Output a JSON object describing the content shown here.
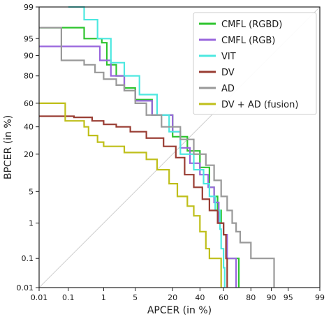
{
  "chart_data": {
    "type": "line",
    "xlabel": "APCER (in %)",
    "ylabel": "BPCER (in %)",
    "scale": "normal-deviate (probit) on both axes",
    "xlim": [
      0.01,
      99
    ],
    "ylim": [
      0.01,
      99
    ],
    "x_ticks": [
      0.01,
      0.1,
      1,
      5,
      20,
      40,
      60,
      80,
      90,
      95,
      99
    ],
    "x_tick_labels": [
      "0.01",
      "0.1",
      "1",
      "5",
      "20",
      "40",
      "60",
      "80",
      "90",
      "95",
      "99"
    ],
    "y_ticks": [
      0.01,
      0.1,
      1,
      5,
      20,
      40,
      60,
      80,
      90,
      95,
      99
    ],
    "y_tick_labels": [
      "0.01",
      "0.1",
      "1",
      "5",
      "20",
      "40",
      "60",
      "80",
      "90",
      "95",
      "99"
    ],
    "grid": false,
    "diagonal_reference": true,
    "legend_position": "top-right",
    "series": [
      {
        "name": "CMFL (RGBD)",
        "color": "#2ec42e",
        "points": [
          [
            0.01,
            97
          ],
          [
            0.07,
            97
          ],
          [
            0.3,
            95
          ],
          [
            0.9,
            94
          ],
          [
            1.2,
            86
          ],
          [
            2,
            80
          ],
          [
            3,
            72
          ],
          [
            5,
            63
          ],
          [
            10,
            50
          ],
          [
            20,
            32
          ],
          [
            30,
            22
          ],
          [
            40,
            13
          ],
          [
            48,
            6
          ],
          [
            52,
            4
          ],
          [
            55,
            2
          ],
          [
            58,
            1
          ],
          [
            60,
            0.5
          ],
          [
            61,
            0.5
          ],
          [
            62,
            0.1
          ],
          [
            70,
            0.1
          ],
          [
            72,
            0.01
          ]
        ]
      },
      {
        "name": "CMFL (RGB)",
        "color": "#9966dd",
        "points": [
          [
            0.01,
            93
          ],
          [
            0.5,
            93
          ],
          [
            0.8,
            88
          ],
          [
            1.5,
            80
          ],
          [
            3,
            70
          ],
          [
            5,
            62
          ],
          [
            10,
            50
          ],
          [
            20,
            36
          ],
          [
            25,
            24
          ],
          [
            32,
            15
          ],
          [
            40,
            10
          ],
          [
            47,
            6
          ],
          [
            52,
            3
          ],
          [
            56,
            1
          ],
          [
            60,
            0.5
          ],
          [
            63,
            0.1
          ],
          [
            66,
            0.1
          ],
          [
            70,
            0.01
          ]
        ]
      },
      {
        "name": "VIT",
        "color": "#4de8e0",
        "points": [
          [
            0.1,
            99
          ],
          [
            0.3,
            98
          ],
          [
            0.7,
            95
          ],
          [
            1.5,
            87
          ],
          [
            3,
            80
          ],
          [
            6,
            67
          ],
          [
            12,
            50
          ],
          [
            18,
            36
          ],
          [
            25,
            20
          ],
          [
            35,
            12
          ],
          [
            43,
            7
          ],
          [
            48,
            4
          ],
          [
            53,
            2
          ],
          [
            57,
            0.7
          ],
          [
            58,
            0.2
          ],
          [
            60,
            0.05
          ],
          [
            61,
            0.01
          ]
        ]
      },
      {
        "name": "DV",
        "color": "#993d33",
        "points": [
          [
            0.01,
            49
          ],
          [
            0.07,
            49
          ],
          [
            0.15,
            48
          ],
          [
            0.5,
            45
          ],
          [
            1,
            42
          ],
          [
            2,
            40
          ],
          [
            4,
            36
          ],
          [
            8,
            31
          ],
          [
            15,
            25
          ],
          [
            22,
            18
          ],
          [
            28,
            10
          ],
          [
            35,
            6
          ],
          [
            42,
            3.5
          ],
          [
            48,
            2
          ],
          [
            55,
            1
          ],
          [
            60,
            0.5
          ],
          [
            62,
            0.1
          ],
          [
            63,
            0.01
          ]
        ]
      },
      {
        "name": "AD",
        "color": "#999999",
        "points": [
          [
            0.01,
            97
          ],
          [
            0.05,
            97
          ],
          [
            0.06,
            88
          ],
          [
            0.3,
            86
          ],
          [
            0.6,
            82
          ],
          [
            1,
            78
          ],
          [
            2,
            74
          ],
          [
            3,
            70
          ],
          [
            5,
            60
          ],
          [
            8,
            50
          ],
          [
            14,
            40
          ],
          [
            25,
            30
          ],
          [
            35,
            20
          ],
          [
            45,
            14
          ],
          [
            52,
            8
          ],
          [
            58,
            4
          ],
          [
            63,
            2
          ],
          [
            67,
            1
          ],
          [
            70,
            0.6
          ],
          [
            73,
            0.3
          ],
          [
            80,
            0.1
          ],
          [
            85,
            0.1
          ],
          [
            90,
            0.1
          ],
          [
            91,
            0.01
          ]
        ]
      },
      {
        "name": "DV + AD (fusion)",
        "color": "#bfbf1a",
        "points": [
          [
            0.01,
            60
          ],
          [
            0.07,
            60
          ],
          [
            0.08,
            45
          ],
          [
            0.3,
            40
          ],
          [
            0.4,
            33
          ],
          [
            0.7,
            28
          ],
          [
            1,
            25
          ],
          [
            3,
            21
          ],
          [
            8,
            17
          ],
          [
            12,
            12
          ],
          [
            18,
            7
          ],
          [
            23,
            4
          ],
          [
            30,
            2.5
          ],
          [
            35,
            1.5
          ],
          [
            40,
            0.6
          ],
          [
            45,
            0.2
          ],
          [
            48,
            0.1
          ],
          [
            55,
            0.1
          ],
          [
            58,
            0.01
          ]
        ]
      }
    ]
  }
}
